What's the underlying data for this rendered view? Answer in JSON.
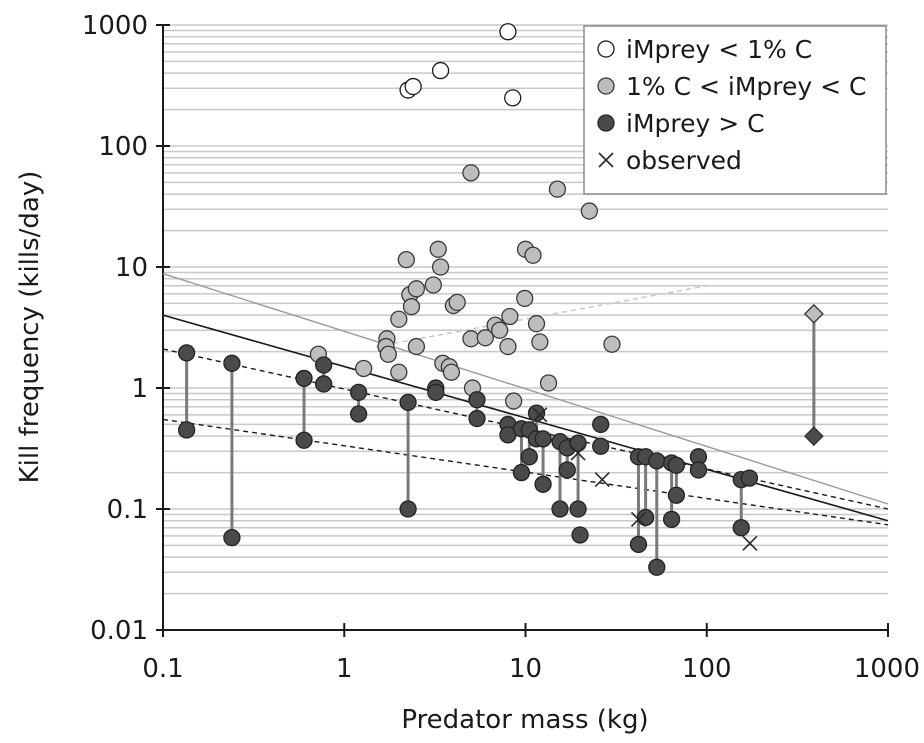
{
  "chart_data": {
    "type": "scatter",
    "xlabel": "Predator mass (kg)",
    "ylabel": "Kill frequency (kills/day)",
    "xscale": "log",
    "yscale": "log",
    "xlim": [
      0.1,
      1000
    ],
    "ylim": [
      0.01,
      1000
    ],
    "x_ticks": [
      0.1,
      1,
      10,
      100,
      1000
    ],
    "x_tick_labels": [
      "0.1",
      "1",
      "10",
      "100",
      "1000"
    ],
    "y_ticks": [
      0.01,
      0.1,
      1,
      10,
      100,
      1000
    ],
    "y_tick_labels": [
      "0.01",
      "0.1",
      "1",
      "10",
      "100",
      "1000"
    ],
    "grid": "horizontal minor gridlines",
    "legend_position": "top-right",
    "colors": {
      "open_fill": "#ffffff",
      "light_fill": "#bdbdbd",
      "dark_fill": "#4a4a4a",
      "marker_edge": "#1a1a1a",
      "grid": "#c8c8c8",
      "connector": "#7a7a7a",
      "gray_line": "#9a9a9a"
    },
    "series": [
      {
        "name": "iMprey < 1% C",
        "marker": "open-circle",
        "points": [
          [
            2.25,
            290
          ],
          [
            2.4,
            310
          ],
          [
            3.4,
            420
          ],
          [
            8,
            880
          ],
          [
            8.5,
            250
          ]
        ]
      },
      {
        "name": "1% C < iMprey < C",
        "marker": "light-circle",
        "points": [
          [
            0.72,
            1.9
          ],
          [
            1.28,
            1.45
          ],
          [
            1.72,
            2.55
          ],
          [
            1.7,
            2.2
          ],
          [
            1.75,
            1.9
          ],
          [
            2.0,
            1.35
          ],
          [
            2.0,
            3.7
          ],
          [
            2.2,
            11.5
          ],
          [
            2.3,
            5.9
          ],
          [
            2.35,
            4.7
          ],
          [
            2.5,
            6.6
          ],
          [
            2.5,
            2.2
          ],
          [
            3.1,
            7.1
          ],
          [
            3.3,
            14
          ],
          [
            3.4,
            10
          ],
          [
            3.5,
            1.6
          ],
          [
            3.8,
            1.5
          ],
          [
            3.9,
            1.35
          ],
          [
            4.0,
            4.8
          ],
          [
            4.2,
            5.1
          ],
          [
            5.0,
            60
          ],
          [
            5.0,
            2.55
          ],
          [
            5.1,
            1.0
          ],
          [
            6.0,
            2.6
          ],
          [
            6.8,
            3.3
          ],
          [
            7.2,
            3.0
          ],
          [
            8.0,
            2.2
          ],
          [
            8.2,
            3.9
          ],
          [
            8.6,
            0.78
          ],
          [
            9.9,
            5.5
          ],
          [
            10.0,
            14
          ],
          [
            11.0,
            12.5
          ],
          [
            11.5,
            3.4
          ],
          [
            12.0,
            2.4
          ],
          [
            13.4,
            1.1
          ],
          [
            15,
            44
          ],
          [
            22.5,
            29
          ],
          [
            30,
            2.3
          ]
        ]
      },
      {
        "name": "iMprey > C",
        "marker": "dark-circle",
        "points": [
          [
            0.135,
            1.95
          ],
          [
            0.135,
            0.45
          ],
          [
            0.24,
            1.6
          ],
          [
            0.24,
            0.058
          ],
          [
            0.6,
            1.2
          ],
          [
            0.6,
            0.37
          ],
          [
            0.77,
            1.55
          ],
          [
            0.77,
            1.08
          ],
          [
            1.2,
            0.92
          ],
          [
            1.2,
            0.61
          ],
          [
            2.25,
            0.76
          ],
          [
            2.25,
            0.1
          ],
          [
            3.2,
            1.0
          ],
          [
            3.2,
            0.92
          ],
          [
            5.4,
            0.8
          ],
          [
            5.4,
            0.56
          ],
          [
            8.0,
            0.5
          ],
          [
            8.0,
            0.41
          ],
          [
            9.5,
            0.46
          ],
          [
            9.5,
            0.2
          ],
          [
            10.5,
            0.45
          ],
          [
            10.5,
            0.27
          ],
          [
            11.5,
            0.62
          ],
          [
            11.5,
            0.38
          ],
          [
            12.5,
            0.38
          ],
          [
            12.5,
            0.16
          ],
          [
            15.5,
            0.36
          ],
          [
            15.5,
            0.1
          ],
          [
            17,
            0.32
          ],
          [
            17,
            0.21
          ],
          [
            19.5,
            0.35
          ],
          [
            19.5,
            0.1
          ],
          [
            20,
            0.061
          ],
          [
            26,
            0.5
          ],
          [
            26,
            0.33
          ],
          [
            42,
            0.27
          ],
          [
            42,
            0.051
          ],
          [
            46,
            0.27
          ],
          [
            46,
            0.085
          ],
          [
            53,
            0.25
          ],
          [
            53,
            0.033
          ],
          [
            64,
            0.24
          ],
          [
            64,
            0.082
          ],
          [
            68,
            0.23
          ],
          [
            68,
            0.13
          ],
          [
            90,
            0.27
          ],
          [
            90,
            0.21
          ],
          [
            155,
            0.175
          ],
          [
            155,
            0.07
          ],
          [
            172,
            0.18
          ]
        ]
      },
      {
        "name": "observed",
        "marker": "x",
        "points": [
          [
            12,
            0.6
          ],
          [
            19.5,
            0.29
          ],
          [
            26.5,
            0.175
          ],
          [
            42,
            0.082
          ],
          [
            173,
            0.052
          ]
        ]
      },
      {
        "name": "",
        "marker": "diamond",
        "points": [
          [
            390,
            4.1
          ],
          [
            390,
            0.4
          ]
        ]
      }
    ],
    "connectors": [
      [
        0.135,
        1.95,
        0.45
      ],
      [
        0.24,
        1.6,
        0.058
      ],
      [
        0.6,
        1.2,
        0.37
      ],
      [
        0.77,
        1.55,
        1.08
      ],
      [
        1.2,
        0.92,
        0.61
      ],
      [
        2.25,
        0.76,
        0.1
      ],
      [
        3.2,
        1.0,
        0.92
      ],
      [
        5.4,
        0.8,
        0.56
      ],
      [
        8.0,
        0.5,
        0.41
      ],
      [
        9.5,
        0.46,
        0.2
      ],
      [
        10.5,
        0.45,
        0.27
      ],
      [
        11.5,
        0.62,
        0.38
      ],
      [
        12.5,
        0.38,
        0.16
      ],
      [
        15.5,
        0.36,
        0.1
      ],
      [
        17,
        0.32,
        0.21
      ],
      [
        19.5,
        0.35,
        0.1
      ],
      [
        42,
        0.27,
        0.051
      ],
      [
        46,
        0.27,
        0.085
      ],
      [
        53,
        0.25,
        0.033
      ],
      [
        64,
        0.24,
        0.082
      ],
      [
        68,
        0.23,
        0.13
      ],
      [
        90,
        0.27,
        0.21
      ],
      [
        155,
        0.175,
        0.07
      ],
      [
        390,
        4.1,
        0.4
      ]
    ],
    "trend_lines": [
      {
        "style": "solid-gray",
        "from": [
          0.1,
          8.8
        ],
        "to": [
          1000,
          0.11
        ]
      },
      {
        "style": "solid-black",
        "from": [
          0.1,
          4.0
        ],
        "to": [
          1000,
          0.08
        ]
      },
      {
        "style": "dashed-black",
        "from": [
          0.1,
          2.1
        ],
        "to": [
          1000,
          0.1
        ]
      },
      {
        "style": "dashed-black",
        "from": [
          0.1,
          0.55
        ],
        "to": [
          1000,
          0.074
        ]
      },
      {
        "style": "dashed-lightgray",
        "from": [
          1.5,
          2.2
        ],
        "to": [
          100,
          7.0
        ]
      }
    ]
  }
}
